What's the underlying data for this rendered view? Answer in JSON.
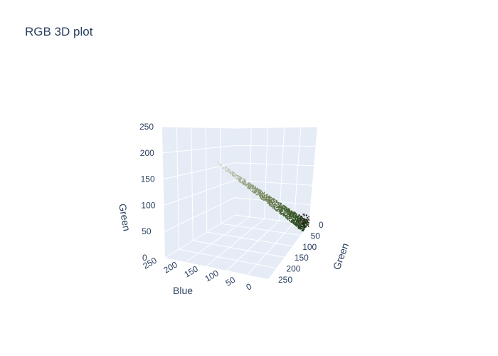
{
  "chart_data": {
    "type": "scatter",
    "title": "RGB 3D plot",
    "axes": {
      "vertical": {
        "label": "Green",
        "range": [
          0,
          250
        ],
        "ticks": [
          "0",
          "50",
          "100",
          "150",
          "200",
          "250"
        ]
      },
      "right_floor": {
        "label": "Green",
        "range": [
          0,
          250
        ],
        "ticks": [
          "0",
          "50",
          "100",
          "150",
          "200",
          "250"
        ]
      },
      "left_floor": {
        "label": "Blue",
        "range": [
          250,
          0
        ],
        "ticks": [
          "250",
          "200",
          "150",
          "100",
          "50",
          "0"
        ]
      }
    },
    "grid": true,
    "legend": "none",
    "point_cloud": {
      "description_samples": [
        {
          "green": 240,
          "blue": 240,
          "vertical": 240,
          "color": "#d8dcd0"
        },
        {
          "green": 200,
          "blue": 200,
          "vertical": 200,
          "color": "#b8c0a8"
        },
        {
          "green": 160,
          "blue": 160,
          "vertical": 160,
          "color": "#98a888"
        },
        {
          "green": 120,
          "blue": 120,
          "vertical": 120,
          "color": "#7a8c60"
        },
        {
          "green": 80,
          "blue": 80,
          "vertical": 80,
          "color": "#5a7040"
        },
        {
          "green": 40,
          "blue": 40,
          "vertical": 40,
          "color": "#3a5a28"
        },
        {
          "green": 10,
          "blue": 10,
          "vertical": 10,
          "color": "#20401a"
        }
      ]
    },
    "colors": {
      "plot_bg": "#e5ecf6",
      "grid": "#ffffff",
      "text": "#2a3f5f"
    }
  }
}
